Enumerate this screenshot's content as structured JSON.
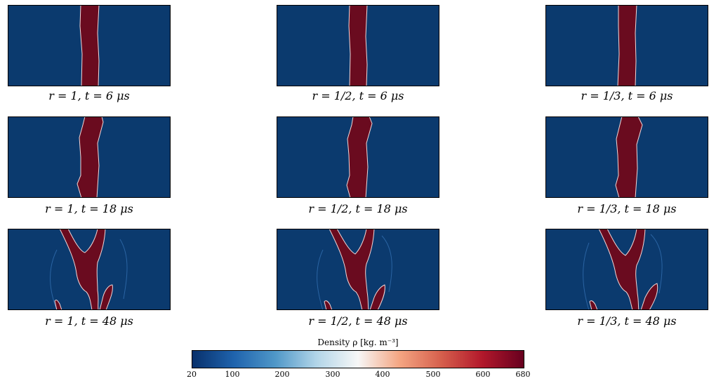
{
  "panels": [
    {
      "label": "r = 1, t = 6 μs"
    },
    {
      "label": "r = 1/2, t = 6 μs"
    },
    {
      "label": "r = 1/3, t = 6 μs"
    },
    {
      "label": "r = 1, t = 18 μs"
    },
    {
      "label": "r = 1/2, t = 18 μs"
    },
    {
      "label": "r = 1/3, t = 18 μs"
    },
    {
      "label": "r = 1, t = 48 μs"
    },
    {
      "label": "r = 1/2, t = 48 μs"
    },
    {
      "label": "r = 1/3, t = 48 μs"
    }
  ],
  "colorbar": {
    "title": "Density ρ [kg. m⁻³]",
    "min": 20,
    "max": 680,
    "ticks": [
      "20",
      "100",
      "200",
      "300",
      "400",
      "500",
      "600",
      "680"
    ],
    "colors": [
      "#08306b",
      "#1f63ad",
      "#4f97c8",
      "#b2d5e8",
      "#f7f7f7",
      "#f4a582",
      "#d6604d",
      "#b2182b",
      "#67001f"
    ]
  },
  "colors": {
    "background_fluid": "#0b3a6e",
    "dense_fluid": "#6a0b1f"
  }
}
